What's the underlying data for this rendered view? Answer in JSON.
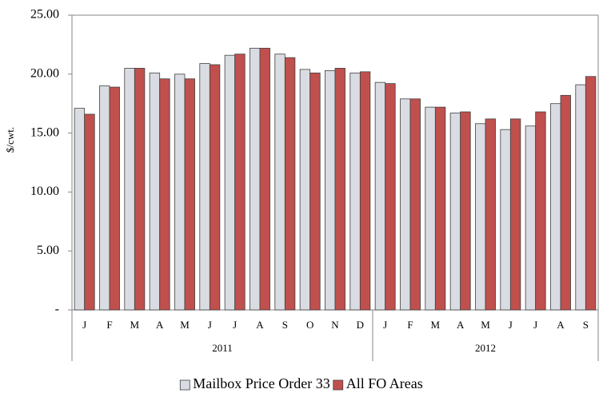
{
  "chart_data": {
    "type": "bar",
    "y_label": "$/cwt.",
    "categories": [
      "J",
      "F",
      "M",
      "A",
      "M",
      "J",
      "J",
      "A",
      "S",
      "O",
      "N",
      "D",
      "J",
      "F",
      "M",
      "A",
      "M",
      "J",
      "J",
      "A",
      "S"
    ],
    "category_groups": [
      {
        "label": "2011",
        "first": 0,
        "last": 11
      },
      {
        "label": "2012",
        "first": 12,
        "last": 20
      }
    ],
    "series": [
      {
        "name": "Mailbox Price Order 33",
        "color": "#d9dce2",
        "values": [
          17.1,
          19.0,
          20.5,
          20.1,
          20.0,
          20.9,
          21.6,
          22.2,
          21.7,
          20.4,
          20.3,
          20.1,
          19.3,
          17.9,
          17.2,
          16.7,
          15.8,
          15.3,
          15.6,
          17.5,
          19.1
        ]
      },
      {
        "name": "All FO Areas",
        "color": "#c0504d",
        "values": [
          16.6,
          18.9,
          20.5,
          19.6,
          19.6,
          20.8,
          21.7,
          22.2,
          21.4,
          20.1,
          20.5,
          20.2,
          19.2,
          17.9,
          17.2,
          16.8,
          16.2,
          16.2,
          16.8,
          18.2,
          19.8
        ]
      }
    ],
    "ylim": [
      0,
      25
    ],
    "yticks": [
      {
        "value": 0,
        "label": "-"
      },
      {
        "value": 5,
        "label": "5.00"
      },
      {
        "value": 10,
        "label": "10.00"
      },
      {
        "value": 15,
        "label": "15.00"
      },
      {
        "value": 20,
        "label": "20.00"
      },
      {
        "value": 25,
        "label": "25.00"
      }
    ],
    "grid": false,
    "legend": "bottom"
  }
}
